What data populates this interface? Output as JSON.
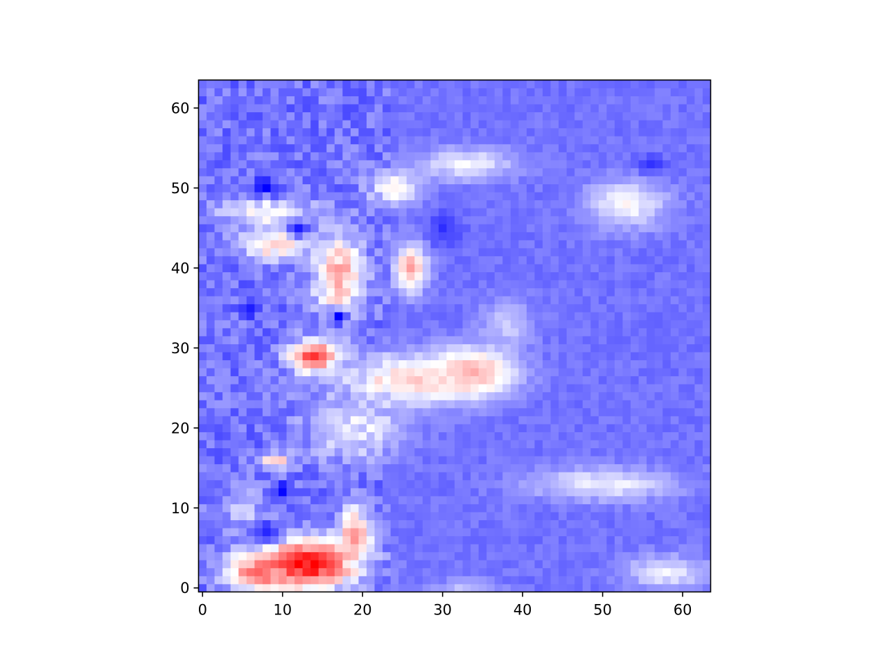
{
  "chart_data": {
    "type": "heatmap",
    "colormap": "bwr",
    "color_low": "#0000ff",
    "color_mid": "#ffffff",
    "color_high": "#ff0000",
    "grid_size": [
      64,
      64
    ],
    "origin": "lower",
    "xlim": [
      -0.5,
      63.5
    ],
    "ylim": [
      -0.5,
      63.5
    ],
    "x_ticks": [
      0,
      10,
      20,
      30,
      40,
      50,
      60
    ],
    "y_ticks": [
      0,
      10,
      20,
      30,
      40,
      50,
      60
    ],
    "x_tick_labels": [
      "0",
      "10",
      "20",
      "30",
      "40",
      "50",
      "60"
    ],
    "y_tick_labels": [
      "0",
      "10",
      "20",
      "30",
      "40",
      "50",
      "60"
    ],
    "value_range": [
      -1,
      1
    ],
    "base_value": -0.55,
    "regions": [
      {
        "center": [
          13,
          3
        ],
        "radius": [
          6,
          3
        ],
        "peak": 1.0
      },
      {
        "center": [
          7,
          2
        ],
        "radius": [
          4,
          2
        ],
        "peak": 0.55
      },
      {
        "center": [
          19,
          7
        ],
        "radius": [
          2,
          3
        ],
        "peak": 0.35
      },
      {
        "center": [
          14,
          29
        ],
        "radius": [
          3,
          2
        ],
        "peak": 0.75
      },
      {
        "center": [
          9,
          16
        ],
        "radius": [
          2,
          1
        ],
        "peak": 0.25
      },
      {
        "center": [
          34,
          27
        ],
        "radius": [
          5,
          3
        ],
        "peak": 0.35
      },
      {
        "center": [
          26,
          26
        ],
        "radius": [
          8,
          3
        ],
        "peak": 0.2
      },
      {
        "center": [
          26,
          40
        ],
        "radius": [
          2,
          3
        ],
        "peak": 0.35
      },
      {
        "center": [
          17,
          39
        ],
        "radius": [
          3,
          5
        ],
        "peak": 0.35
      },
      {
        "center": [
          9,
          43
        ],
        "radius": [
          4,
          2
        ],
        "peak": 0.2
      },
      {
        "center": [
          24,
          50
        ],
        "radius": [
          3,
          2
        ],
        "peak": 0.1
      },
      {
        "center": [
          53,
          48
        ],
        "radius": [
          5,
          3
        ],
        "peak": 0.0
      },
      {
        "center": [
          8,
          47
        ],
        "radius": [
          6,
          2
        ],
        "peak": 0.0
      },
      {
        "center": [
          33,
          53
        ],
        "radius": [
          6,
          2
        ],
        "peak": -0.05
      },
      {
        "center": [
          50,
          13
        ],
        "radius": [
          9,
          2
        ],
        "peak": -0.05
      },
      {
        "center": [
          58,
          2
        ],
        "radius": [
          5,
          2
        ],
        "peak": -0.05
      },
      {
        "center": [
          33,
          0
        ],
        "radius": [
          4,
          1
        ],
        "peak": -0.25
      },
      {
        "center": [
          19,
          20
        ],
        "radius": [
          6,
          4
        ],
        "peak": -0.1
      },
      {
        "center": [
          38,
          33
        ],
        "radius": [
          3,
          3
        ],
        "peak": -0.2
      },
      {
        "center": [
          5,
          10
        ],
        "radius": [
          3,
          3
        ],
        "peak": -0.25
      }
    ],
    "cold_spots": [
      {
        "center": [
          12,
          45
        ],
        "radius": [
          1,
          1
        ],
        "peak": -1.0
      },
      {
        "center": [
          17,
          34
        ],
        "radius": [
          1,
          1
        ],
        "peak": -1.0
      },
      {
        "center": [
          10,
          12
        ],
        "radius": [
          1,
          1
        ],
        "peak": -1.0
      },
      {
        "center": [
          8,
          50
        ],
        "radius": [
          2,
          1
        ],
        "peak": -0.95
      },
      {
        "center": [
          6,
          35
        ],
        "radius": [
          1,
          1
        ],
        "peak": -0.95
      },
      {
        "center": [
          8,
          7
        ],
        "radius": [
          2,
          1
        ],
        "peak": -0.95
      },
      {
        "center": [
          56,
          53
        ],
        "radius": [
          2,
          1
        ],
        "peak": -0.85
      },
      {
        "center": [
          30,
          45
        ],
        "radius": [
          2,
          2
        ],
        "peak": -0.8
      }
    ]
  }
}
